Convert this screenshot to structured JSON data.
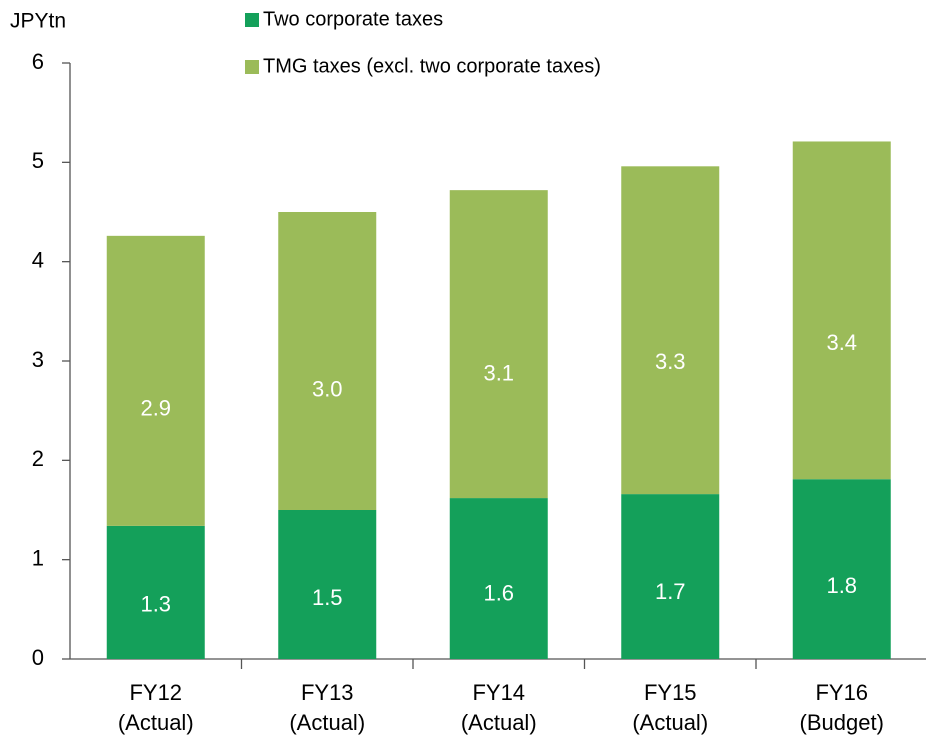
{
  "chart_data": {
    "type": "stacked_bar",
    "y_label": "JPYtn",
    "categories": [
      [
        "FY12",
        "(Actual)"
      ],
      [
        "FY13",
        "(Actual)"
      ],
      [
        "FY14",
        "(Actual)"
      ],
      [
        "FY15",
        "(Actual)"
      ],
      [
        "FY16",
        "(Budget)"
      ]
    ],
    "series": [
      {
        "name": "Two corporate taxes",
        "color": "#14a05a",
        "values": [
          1.34,
          1.5,
          1.62,
          1.66,
          1.81
        ],
        "value_labels": [
          "1.3",
          "1.5",
          "1.6",
          "1.7",
          "1.8"
        ]
      },
      {
        "name": "TMG taxes (excl. two corporate taxes)",
        "color": "#9bbb59",
        "values": [
          2.92,
          3.0,
          3.1,
          3.3,
          3.4
        ],
        "value_labels": [
          "2.9",
          "3.0",
          "3.1",
          "3.3",
          "3.4"
        ]
      }
    ],
    "ylim": [
      0,
      6
    ],
    "yticks": [
      0,
      1,
      2,
      3,
      4,
      5,
      6
    ],
    "grid": false
  }
}
